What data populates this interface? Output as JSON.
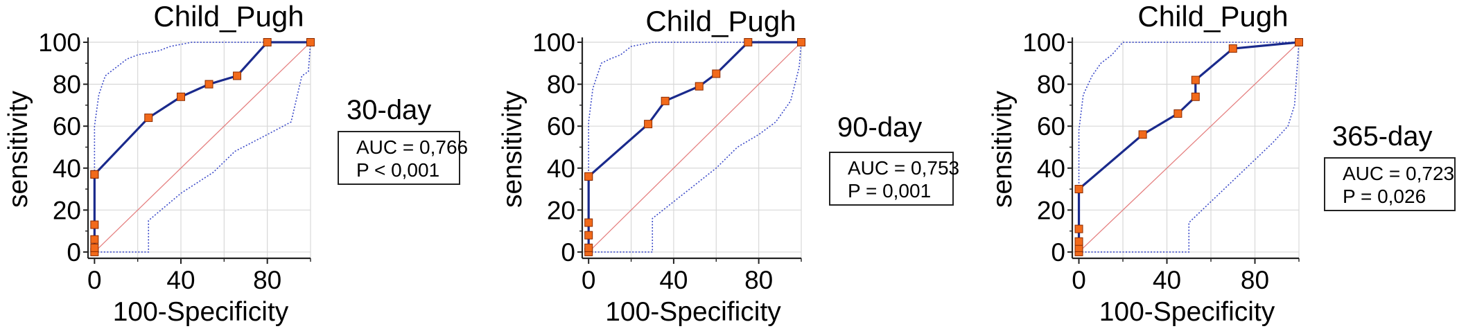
{
  "chart_data": [
    {
      "type": "line",
      "title": "Child_Pugh",
      "xlabel": "100-Specificity",
      "ylabel": "sensitivity",
      "xlim": [
        -3,
        100
      ],
      "ylim": [
        -3,
        101
      ],
      "xticks": [
        "0",
        "40",
        "80"
      ],
      "yticks": [
        "0",
        "20",
        "40",
        "60",
        "80",
        "100"
      ],
      "grid": true,
      "period_label": "30-day",
      "auc_label": "AUC = 0,766",
      "p_label": "P < 0,001",
      "roc": {
        "x": [
          0,
          0,
          0,
          0,
          0,
          0,
          25,
          40,
          53,
          66,
          80,
          100
        ],
        "y": [
          0,
          2,
          6,
          13,
          37,
          37,
          64,
          74,
          80,
          84,
          100,
          100
        ]
      },
      "ci_upper": {
        "x": [
          0,
          0,
          2,
          5,
          10,
          15,
          20,
          30,
          35,
          45,
          60,
          80,
          100
        ],
        "y": [
          0,
          60,
          75,
          84,
          88,
          92,
          94,
          96,
          98,
          100,
          100,
          100,
          100
        ]
      },
      "ci_lower": {
        "x": [
          0,
          25,
          25,
          40,
          55,
          65,
          80,
          91,
          91,
          96,
          99,
          100
        ],
        "y": [
          0,
          0,
          15,
          28,
          38,
          48,
          56,
          62,
          62,
          84,
          86,
          100
        ]
      }
    },
    {
      "type": "line",
      "title": "Child_Pugh",
      "xlabel": "100-Specificity",
      "ylabel": "sensitivity",
      "xlim": [
        -3,
        100
      ],
      "ylim": [
        -3,
        101
      ],
      "xticks": [
        "0",
        "40",
        "80"
      ],
      "yticks": [
        "0",
        "20",
        "40",
        "60",
        "80",
        "100"
      ],
      "grid": true,
      "period_label": "90-day",
      "auc_label": "AUC = 0,753",
      "p_label": "P = 0,001",
      "roc": {
        "x": [
          0,
          0,
          0,
          0,
          0,
          0,
          28,
          36,
          52,
          60,
          75,
          100
        ],
        "y": [
          0,
          2,
          8,
          14,
          36,
          36,
          61,
          72,
          79,
          85,
          100,
          100
        ]
      },
      "ci_upper": {
        "x": [
          0,
          0,
          2,
          6,
          10,
          15,
          20,
          30,
          40,
          60,
          80,
          100
        ],
        "y": [
          0,
          62,
          78,
          90,
          92,
          94,
          98,
          100,
          100,
          100,
          100,
          100
        ]
      },
      "ci_lower": {
        "x": [
          0,
          30,
          30,
          40,
          50,
          60,
          70,
          80,
          88,
          95,
          99,
          100
        ],
        "y": [
          0,
          0,
          16,
          24,
          32,
          40,
          50,
          56,
          62,
          72,
          88,
          100
        ]
      }
    },
    {
      "type": "line",
      "title": "Child_Pugh",
      "xlabel": "100-Specificity",
      "ylabel": "sensitivity",
      "xlim": [
        -3,
        100
      ],
      "ylim": [
        -3,
        101
      ],
      "xticks": [
        "0",
        "40",
        "80"
      ],
      "yticks": [
        "0",
        "20",
        "40",
        "60",
        "80",
        "100"
      ],
      "grid": true,
      "period_label": "365-day",
      "auc_label": "AUC = 0,723",
      "p_label": "P = 0,026",
      "roc": {
        "x": [
          0,
          0,
          0,
          0,
          0,
          0,
          29,
          45,
          53,
          53,
          70,
          100
        ],
        "y": [
          0,
          2,
          5,
          11,
          30,
          30,
          56,
          66,
          74,
          82,
          97,
          100
        ]
      },
      "ci_upper": {
        "x": [
          0,
          0,
          2,
          6,
          10,
          15,
          20,
          30,
          40,
          60,
          80,
          100
        ],
        "y": [
          0,
          58,
          75,
          84,
          90,
          94,
          100,
          100,
          100,
          100,
          100,
          100
        ]
      },
      "ci_lower": {
        "x": [
          0,
          50,
          50,
          60,
          70,
          80,
          88,
          95,
          98,
          100
        ],
        "y": [
          0,
          0,
          14,
          24,
          34,
          44,
          52,
          60,
          70,
          100
        ]
      }
    }
  ],
  "colors": {
    "roc_line": "#1a2a8c",
    "marker_fill": "#f26a1b",
    "marker_stroke": "#8a2a00",
    "ci_line": "#3a49c8",
    "diagonal": "#e58080",
    "grid": "#d8d8d8",
    "axis": "#222222"
  }
}
